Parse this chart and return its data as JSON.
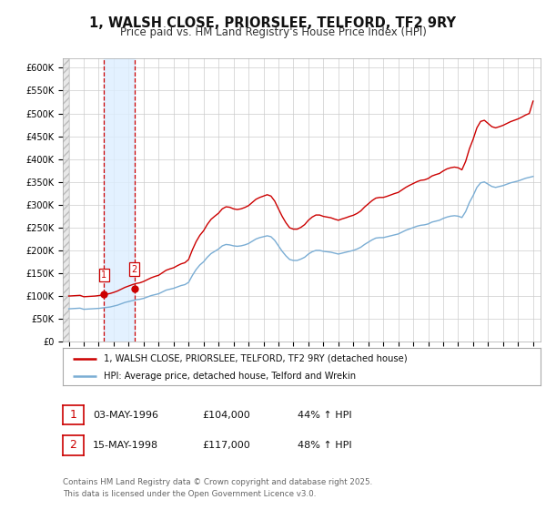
{
  "title": "1, WALSH CLOSE, PRIORSLEE, TELFORD, TF2 9RY",
  "subtitle": "Price paid vs. HM Land Registry's House Price Index (HPI)",
  "title_fontsize": 10.5,
  "subtitle_fontsize": 8.5,
  "background_color": "#ffffff",
  "plot_bg_color": "#ffffff",
  "grid_color": "#cccccc",
  "red_line_color": "#cc0000",
  "blue_line_color": "#7aadd4",
  "shade_color": "#ddeeff",
  "vline_color": "#cc0000",
  "ylim": [
    0,
    620000
  ],
  "yticks": [
    0,
    50000,
    100000,
    150000,
    200000,
    250000,
    300000,
    350000,
    400000,
    450000,
    500000,
    550000,
    600000
  ],
  "ytick_labels": [
    "£0",
    "£50K",
    "£100K",
    "£150K",
    "£200K",
    "£250K",
    "£300K",
    "£350K",
    "£400K",
    "£450K",
    "£500K",
    "£550K",
    "£600K"
  ],
  "xlim_start": 1993.6,
  "xlim_end": 2025.5,
  "purchase1_x": 1996.34,
  "purchase1_y": 104000,
  "purchase2_x": 1998.37,
  "purchase2_y": 117000,
  "legend_label_red": "1, WALSH CLOSE, PRIORSLEE, TELFORD, TF2 9RY (detached house)",
  "legend_label_blue": "HPI: Average price, detached house, Telford and Wrekin",
  "transaction1_date": "03-MAY-1996",
  "transaction1_price": "£104,000",
  "transaction1_hpi": "44% ↑ HPI",
  "transaction2_date": "15-MAY-1998",
  "transaction2_price": "£117,000",
  "transaction2_hpi": "48% ↑ HPI",
  "footer_text": "Contains HM Land Registry data © Crown copyright and database right 2025.\nThis data is licensed under the Open Government Licence v3.0.",
  "hpi_index_data": {
    "years": [
      1994.0,
      1994.25,
      1994.5,
      1994.75,
      1995.0,
      1995.25,
      1995.5,
      1995.75,
      1996.0,
      1996.25,
      1996.5,
      1996.75,
      1997.0,
      1997.25,
      1997.5,
      1997.75,
      1998.0,
      1998.25,
      1998.5,
      1998.75,
      1999.0,
      1999.25,
      1999.5,
      1999.75,
      2000.0,
      2000.25,
      2000.5,
      2000.75,
      2001.0,
      2001.25,
      2001.5,
      2001.75,
      2002.0,
      2002.25,
      2002.5,
      2002.75,
      2003.0,
      2003.25,
      2003.5,
      2003.75,
      2004.0,
      2004.25,
      2004.5,
      2004.75,
      2005.0,
      2005.25,
      2005.5,
      2005.75,
      2006.0,
      2006.25,
      2006.5,
      2006.75,
      2007.0,
      2007.25,
      2007.5,
      2007.75,
      2008.0,
      2008.25,
      2008.5,
      2008.75,
      2009.0,
      2009.25,
      2009.5,
      2009.75,
      2010.0,
      2010.25,
      2010.5,
      2010.75,
      2011.0,
      2011.25,
      2011.5,
      2011.75,
      2012.0,
      2012.25,
      2012.5,
      2012.75,
      2013.0,
      2013.25,
      2013.5,
      2013.75,
      2014.0,
      2014.25,
      2014.5,
      2014.75,
      2015.0,
      2015.25,
      2015.5,
      2015.75,
      2016.0,
      2016.25,
      2016.5,
      2016.75,
      2017.0,
      2017.25,
      2017.5,
      2017.75,
      2018.0,
      2018.25,
      2018.5,
      2018.75,
      2019.0,
      2019.25,
      2019.5,
      2019.75,
      2020.0,
      2020.25,
      2020.5,
      2020.75,
      2021.0,
      2021.25,
      2021.5,
      2021.75,
      2022.0,
      2022.25,
      2022.5,
      2022.75,
      2023.0,
      2023.25,
      2023.5,
      2023.75,
      2024.0,
      2024.25,
      2024.5,
      2024.75,
      2025.0
    ],
    "values": [
      72000,
      72500,
      73000,
      73500,
      71000,
      71500,
      72000,
      72500,
      73000,
      74000,
      75000,
      76000,
      78000,
      80000,
      83000,
      86000,
      88000,
      90000,
      92000,
      93000,
      95000,
      98000,
      101000,
      103000,
      105000,
      109000,
      113000,
      115000,
      117000,
      120000,
      123000,
      125000,
      130000,
      145000,
      158000,
      168000,
      175000,
      185000,
      193000,
      198000,
      203000,
      210000,
      213000,
      212000,
      210000,
      209000,
      210000,
      212000,
      215000,
      220000,
      225000,
      228000,
      230000,
      232000,
      230000,
      222000,
      210000,
      198000,
      188000,
      180000,
      178000,
      178000,
      181000,
      185000,
      192000,
      197000,
      200000,
      200000,
      198000,
      197000,
      196000,
      194000,
      192000,
      194000,
      196000,
      198000,
      200000,
      203000,
      207000,
      213000,
      218000,
      223000,
      227000,
      228000,
      228000,
      230000,
      232000,
      234000,
      236000,
      240000,
      244000,
      247000,
      250000,
      253000,
      255000,
      256000,
      258000,
      262000,
      264000,
      266000,
      270000,
      273000,
      275000,
      276000,
      275000,
      272000,
      285000,
      305000,
      320000,
      338000,
      348000,
      350000,
      345000,
      340000,
      338000,
      340000,
      342000,
      345000,
      348000,
      350000,
      352000,
      355000,
      358000,
      360000,
      362000
    ]
  },
  "red_line_data": {
    "years": [
      1994.0,
      1994.25,
      1994.5,
      1994.75,
      1995.0,
      1995.25,
      1995.5,
      1995.75,
      1996.0,
      1996.25,
      1996.5,
      1996.75,
      1997.0,
      1997.25,
      1997.5,
      1997.75,
      1998.0,
      1998.25,
      1998.5,
      1998.75,
      1999.0,
      1999.25,
      1999.5,
      1999.75,
      2000.0,
      2000.25,
      2000.5,
      2000.75,
      2001.0,
      2001.25,
      2001.5,
      2001.75,
      2002.0,
      2002.25,
      2002.5,
      2002.75,
      2003.0,
      2003.25,
      2003.5,
      2003.75,
      2004.0,
      2004.25,
      2004.5,
      2004.75,
      2005.0,
      2005.25,
      2005.5,
      2005.75,
      2006.0,
      2006.25,
      2006.5,
      2006.75,
      2007.0,
      2007.25,
      2007.5,
      2007.75,
      2008.0,
      2008.25,
      2008.5,
      2008.75,
      2009.0,
      2009.25,
      2009.5,
      2009.75,
      2010.0,
      2010.25,
      2010.5,
      2010.75,
      2011.0,
      2011.25,
      2011.5,
      2011.75,
      2012.0,
      2012.25,
      2012.5,
      2012.75,
      2013.0,
      2013.25,
      2013.5,
      2013.75,
      2014.0,
      2014.25,
      2014.5,
      2014.75,
      2015.0,
      2015.25,
      2015.5,
      2015.75,
      2016.0,
      2016.25,
      2016.5,
      2016.75,
      2017.0,
      2017.25,
      2017.5,
      2017.75,
      2018.0,
      2018.25,
      2018.5,
      2018.75,
      2019.0,
      2019.25,
      2019.5,
      2019.75,
      2020.0,
      2020.25,
      2020.5,
      2020.75,
      2021.0,
      2021.25,
      2021.5,
      2021.75,
      2022.0,
      2022.25,
      2022.5,
      2022.75,
      2023.0,
      2023.25,
      2023.5,
      2023.75,
      2024.0,
      2024.25,
      2024.5,
      2024.75,
      2025.0
    ],
    "values": [
      100000,
      100500,
      101000,
      101500,
      98500,
      99000,
      99500,
      100000,
      101000,
      102500,
      104000,
      105500,
      108000,
      111000,
      115000,
      119000,
      122000,
      125000,
      127500,
      129000,
      132000,
      136000,
      140000,
      143000,
      145500,
      151000,
      156500,
      159500,
      162000,
      166500,
      170500,
      173000,
      180000,
      201000,
      219000,
      233000,
      243000,
      257000,
      268000,
      275000,
      281500,
      291000,
      295500,
      294500,
      291000,
      289500,
      291000,
      294000,
      298000,
      305000,
      312000,
      316000,
      319000,
      322000,
      319000,
      308000,
      291000,
      274500,
      260500,
      249500,
      246500,
      246500,
      250500,
      256500,
      266000,
      273000,
      277500,
      277500,
      274500,
      273000,
      271500,
      268500,
      266000,
      269000,
      271500,
      274500,
      277000,
      281000,
      286500,
      295000,
      302000,
      309000,
      314500,
      316000,
      316000,
      318500,
      321500,
      324500,
      327000,
      332500,
      338000,
      342500,
      346500,
      350500,
      353500,
      354500,
      357500,
      363000,
      366000,
      368500,
      374000,
      378500,
      381000,
      382500,
      381000,
      376500,
      395000,
      422500,
      443500,
      468500,
      482500,
      485000,
      478000,
      471000,
      468500,
      471000,
      474000,
      478000,
      482000,
      485000,
      488000,
      492000,
      496500,
      500000,
      527000
    ]
  }
}
